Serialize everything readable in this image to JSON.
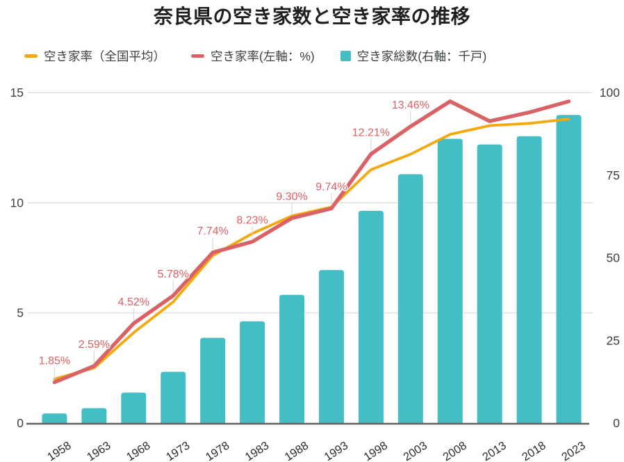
{
  "title": "奈良県の空き家数と空き家率の推移",
  "colors": {
    "bar_teal": "#44BEC5",
    "line_red": "#D96266",
    "line_yellow": "#F3A90B",
    "annotation_red": "#DC6062",
    "annotation_stem": "#d8d8d8",
    "grid": "#e6e6e6",
    "axis_line": "#616161",
    "axis_text": "#3c4043",
    "x_label_text": "#2b2b2b",
    "title_text": "#1f1f1f"
  },
  "chart_data": {
    "type": "combo",
    "title": "奈良県の空き家数と空き家率の推移",
    "categories": [
      "1958",
      "1963",
      "1968",
      "1973",
      "1978",
      "1983",
      "1988",
      "1993",
      "1998",
      "2003",
      "2008",
      "2013",
      "2018",
      "2023"
    ],
    "series": [
      {
        "name": "空き家率（全国平均）",
        "type": "line",
        "axis": "left",
        "color": "#F3A90B",
        "values": [
          2.0,
          2.5,
          4.1,
          5.5,
          7.6,
          8.6,
          9.4,
          9.8,
          11.5,
          12.2,
          13.1,
          13.5,
          13.6,
          13.8
        ]
      },
      {
        "name": "空き家率(左軸：%)",
        "type": "line",
        "axis": "left",
        "color": "#D96266",
        "values": [
          1.85,
          2.59,
          4.52,
          5.78,
          7.74,
          8.23,
          9.3,
          9.74,
          12.21,
          13.46,
          14.6,
          13.7,
          14.1,
          14.6
        ],
        "point_labels": [
          "1.85%",
          "2.59%",
          "4.52%",
          "5.78%",
          "7.74%",
          "8.23%",
          "9.30%",
          "9.74%",
          "12.21%",
          "13.46%",
          null,
          null,
          null,
          null
        ]
      },
      {
        "name": "空き家総数(右軸：千戸)",
        "type": "bar",
        "axis": "right",
        "color": "#44BEC5",
        "values": [
          2.9,
          4.5,
          9.2,
          15.5,
          25.8,
          30.8,
          38.8,
          46.3,
          64.2,
          75.3,
          86.0,
          84.3,
          86.8,
          93.2
        ]
      }
    ],
    "left_axis": {
      "ticks": [
        "0",
        "5",
        "10",
        "15"
      ],
      "range": [
        0,
        15
      ]
    },
    "right_axis": {
      "ticks": [
        "0",
        "25",
        "50",
        "75",
        "100"
      ],
      "range": [
        0,
        100
      ]
    },
    "grid": "horizontal, left-axis ticks only",
    "legend_position": "top",
    "x_label_rotation": -33
  }
}
